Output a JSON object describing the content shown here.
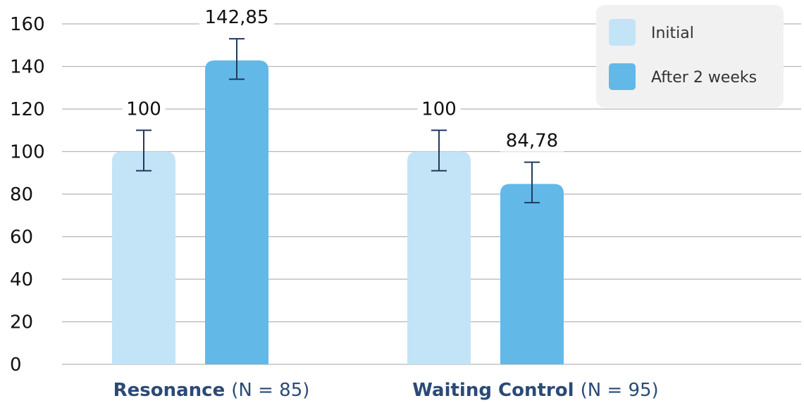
{
  "chart_data": {
    "type": "bar",
    "categories": [
      {
        "name": "Resonance",
        "suffix": "(N = 85)"
      },
      {
        "name": "Waiting Control",
        "suffix": "(N = 95)"
      }
    ],
    "series": [
      {
        "name": "Initial",
        "color": "#c2e4f6",
        "values": [
          100,
          100
        ],
        "labels": [
          "100",
          "100"
        ],
        "error": [
          [
            91,
            110
          ],
          [
            91,
            110
          ]
        ]
      },
      {
        "name": "After 2 weeks",
        "color": "#62b9e8",
        "values": [
          142.85,
          84.78
        ],
        "labels": [
          "142,85",
          "84,78"
        ],
        "error": [
          [
            134,
            153
          ],
          [
            76,
            95
          ]
        ]
      }
    ],
    "ylim": [
      0,
      160
    ],
    "yticks": [
      "0",
      "20",
      "40",
      "60",
      "80",
      "100",
      "120",
      "140",
      "160"
    ],
    "grid": true,
    "legend_position": "top-right",
    "error_bar_color": "#1f3a5f",
    "category_label_color": "#2b4a75"
  }
}
